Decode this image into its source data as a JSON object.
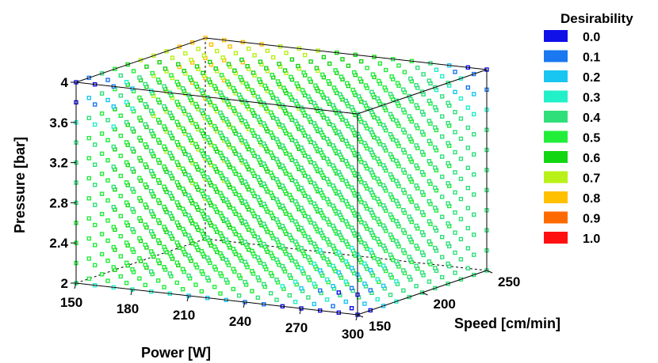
{
  "chart_data": {
    "type": "scatter3d",
    "title": "",
    "x_axis": {
      "label": "Power [W]",
      "range": [
        150,
        300
      ],
      "ticks": [
        150,
        180,
        210,
        240,
        270,
        300
      ]
    },
    "y_axis": {
      "label": "Speed [cm/min]",
      "range": [
        150,
        250
      ],
      "ticks": [
        150,
        200,
        250
      ]
    },
    "z_axis": {
      "label": "Pressure [bar]",
      "range": [
        2,
        4
      ],
      "ticks": [
        "2",
        "2.4",
        "2.8",
        "3.2",
        "3.6",
        "4"
      ]
    },
    "grid_steps": {
      "power": 10,
      "speed": 10,
      "pressure": 0.2
    },
    "legend": {
      "title": "Desirability",
      "position": "right",
      "entries": [
        {
          "label": "0.0",
          "color": "#1010e8"
        },
        {
          "label": "0.1",
          "color": "#1a78f0"
        },
        {
          "label": "0.2",
          "color": "#19c6f2"
        },
        {
          "label": "0.3",
          "color": "#22f0c8"
        },
        {
          "label": "0.4",
          "color": "#2fe07a"
        },
        {
          "label": "0.5",
          "color": "#22ee3a"
        },
        {
          "label": "0.6",
          "color": "#12d612"
        },
        {
          "label": "0.7",
          "color": "#b8f018"
        },
        {
          "label": "0.8",
          "color": "#ffc000"
        },
        {
          "label": "0.9",
          "color": "#ff6a00"
        },
        {
          "label": "1.0",
          "color": "#ff1010"
        }
      ]
    },
    "desirability_trend": {
      "description_free": true,
      "high_region": {
        "power": 150,
        "speed": 250,
        "pressure": 4.0,
        "value": 0.9
      },
      "low_corners": [
        {
          "power": 150,
          "speed": 150,
          "pressure": 4.0,
          "value": 0.0
        },
        {
          "power": 300,
          "speed": 250,
          "pressure": 4.0,
          "value": 0.0
        },
        {
          "power": 300,
          "speed": 150,
          "pressure": 2.0,
          "value": 0.0
        }
      ]
    }
  }
}
